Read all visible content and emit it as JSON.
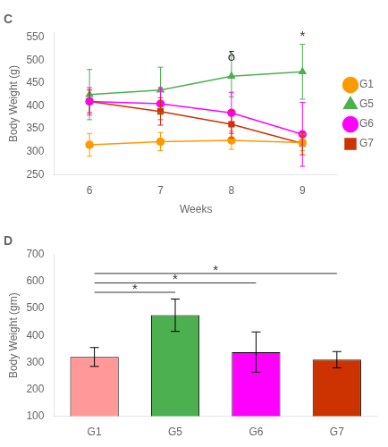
{
  "chart_data": [
    {
      "type": "line",
      "title": "C",
      "x": [
        6,
        7,
        8,
        9
      ],
      "xlim": [
        5.5,
        9.5
      ],
      "xticks": [
        6,
        7,
        8,
        9
      ],
      "ylim": [
        250,
        560
      ],
      "yticks": [
        250,
        300,
        350,
        400,
        450,
        500,
        550
      ],
      "xlabel": "Weeks",
      "ylabel": "Body Weight (g)",
      "grid": false,
      "legend": "right",
      "series": [
        {
          "name": "G1",
          "color": "#FF9900",
          "marker": "circle",
          "values": [
            315,
            322,
            325,
            320
          ],
          "errors": [
            25,
            20,
            20,
            18
          ]
        },
        {
          "name": "G5",
          "color": "#4CAF50",
          "marker": "triangle",
          "values": [
            425,
            435,
            465,
            475
          ],
          "errors": [
            55,
            50,
            45,
            60
          ]
        },
        {
          "name": "G6",
          "color": "#FF00FF",
          "marker": "circle",
          "values": [
            410,
            405,
            385,
            338
          ],
          "errors": [
            30,
            35,
            45,
            70
          ]
        },
        {
          "name": "G7",
          "color": "#CC3300",
          "marker": "square",
          "values": [
            410,
            388,
            360,
            318
          ],
          "errors": [
            25,
            30,
            30,
            25
          ]
        }
      ],
      "annotations": [
        {
          "text": "δ",
          "x": 8,
          "y": 492
        },
        {
          "text": "*",
          "x": 9,
          "y": 537
        }
      ]
    },
    {
      "type": "bar",
      "title": "D",
      "categories": [
        "G1",
        "G5",
        "G6",
        "G7"
      ],
      "values": [
        320,
        475,
        338,
        310
      ],
      "errors": [
        35,
        60,
        75,
        30
      ],
      "colors": [
        "#FF9999",
        "#4CAF50",
        "#FF00FF",
        "#CC3300"
      ],
      "ylim": [
        100,
        700
      ],
      "yticks": [
        100,
        200,
        300,
        400,
        500,
        600,
        700
      ],
      "ylabel": "Body Weight (gm)",
      "grid": false,
      "annotations": [
        {
          "text": "*",
          "from": "G1",
          "to": "G5",
          "y": 560
        },
        {
          "text": "*",
          "from": "G1",
          "to": "G6",
          "y": 595
        },
        {
          "text": "*",
          "from": "G1",
          "to": "G7",
          "y": 630
        }
      ]
    }
  ]
}
